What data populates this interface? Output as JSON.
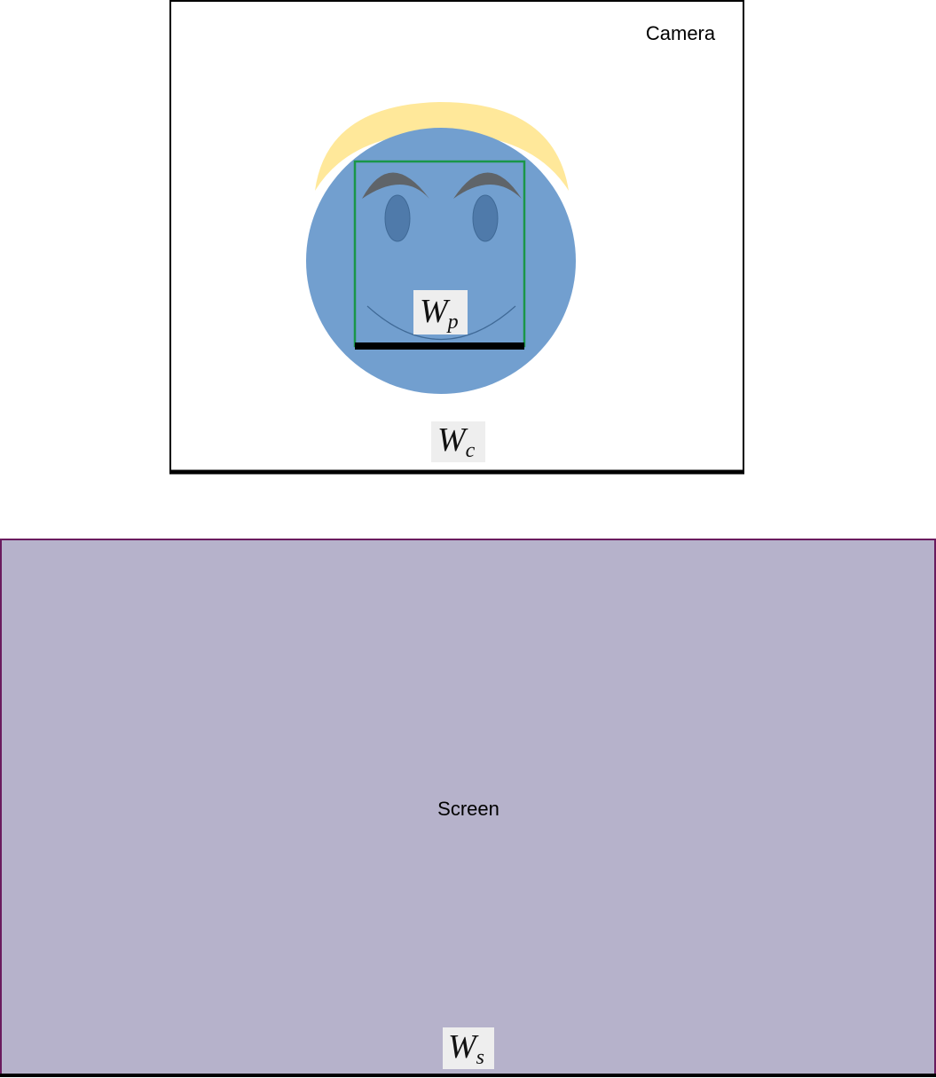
{
  "camera": {
    "label": "Camera",
    "width_symbol": {
      "main": "W",
      "sub": "c"
    }
  },
  "face": {
    "width_symbol": {
      "main": "W",
      "sub": "p"
    }
  },
  "screen": {
    "label": "Screen",
    "width_symbol": {
      "main": "W",
      "sub": "s"
    }
  },
  "colors": {
    "face_fill": "#729fcf",
    "hair_fill": "#ffe89a",
    "eye_fill": "#4f7aaa",
    "eyebrow_fill": "#5f6469",
    "bbox_stroke": "#1a9648",
    "screen_fill": "#b6b2cb",
    "screen_border": "#6a1b5e",
    "symbol_bg": "#eeeeee"
  }
}
